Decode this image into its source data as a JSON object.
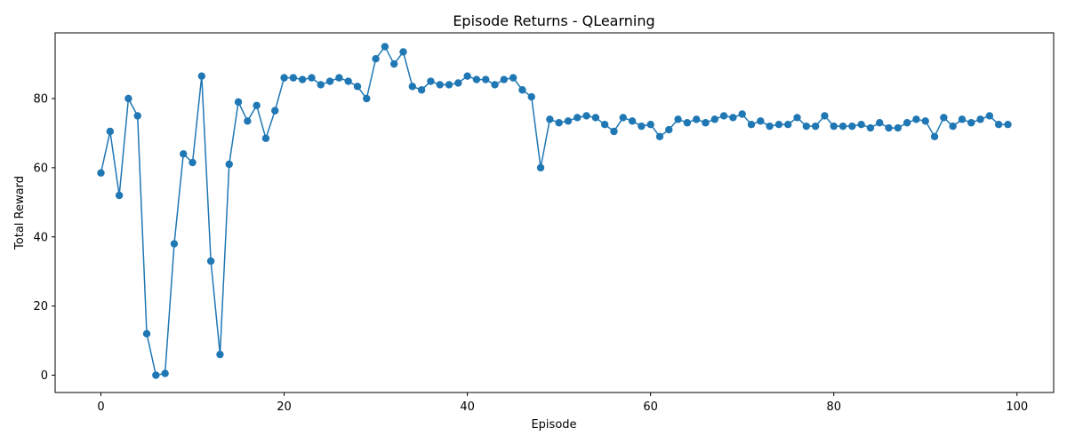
{
  "chart_data": {
    "type": "line",
    "title": "Episode Returns - QLearning",
    "xlabel": "Episode",
    "ylabel": "Total Reward",
    "xlim": [
      -5,
      104
    ],
    "ylim": [
      -5,
      99
    ],
    "xticks": [
      0,
      20,
      40,
      60,
      80,
      100
    ],
    "yticks": [
      0,
      20,
      40,
      60,
      80
    ],
    "grid": false,
    "color": "#1f77b4",
    "marker": "circle",
    "series": [
      {
        "x": [
          0,
          1,
          2,
          3,
          4,
          5,
          6,
          7,
          8,
          9,
          10,
          11,
          12,
          13,
          14,
          15,
          16,
          17,
          18,
          19,
          20,
          21,
          22,
          23,
          24,
          25,
          26,
          27,
          28,
          29,
          30,
          31,
          32,
          33,
          34,
          35,
          36,
          37,
          38,
          39,
          40,
          41,
          42,
          43,
          44,
          45,
          46,
          47,
          48,
          49,
          50,
          51,
          52,
          53,
          54,
          55,
          56,
          57,
          58,
          59,
          60,
          61,
          62,
          63,
          64,
          65,
          66,
          67,
          68,
          69,
          70,
          71,
          72,
          73,
          74,
          75,
          76,
          77,
          78,
          79,
          80,
          81,
          82,
          83,
          84,
          85,
          86,
          87,
          88,
          89,
          90,
          91,
          92,
          93,
          94,
          95,
          96,
          97,
          98,
          99
        ],
        "values": [
          58.5,
          70.5,
          52,
          80,
          75,
          12,
          0,
          0.5,
          38,
          64,
          61.5,
          86.5,
          33,
          6,
          61,
          79,
          73.5,
          78,
          68.5,
          76.5,
          86,
          86,
          85.5,
          86,
          84,
          85,
          86,
          85,
          83.5,
          80,
          91.5,
          95,
          90,
          93.5,
          83.5,
          82.5,
          85,
          84,
          84,
          84.5,
          86.5,
          85.5,
          85.5,
          84,
          85.5,
          86,
          82.5,
          80.5,
          60,
          74,
          73,
          73.5,
          74.5,
          75,
          74.5,
          72.5,
          70.5,
          74.5,
          73.5,
          72,
          72.5,
          69,
          71,
          74,
          73,
          74,
          73,
          74,
          75,
          74.5,
          75.5,
          72.5,
          73.5,
          72,
          72.5,
          72.5,
          74.5,
          72,
          72,
          75,
          72,
          72,
          72,
          72.5,
          71.5,
          73,
          71.5,
          71.5,
          73,
          74,
          73.5,
          69,
          74.5,
          72,
          74,
          73,
          74,
          75,
          72.5,
          72.5
        ]
      }
    ]
  }
}
